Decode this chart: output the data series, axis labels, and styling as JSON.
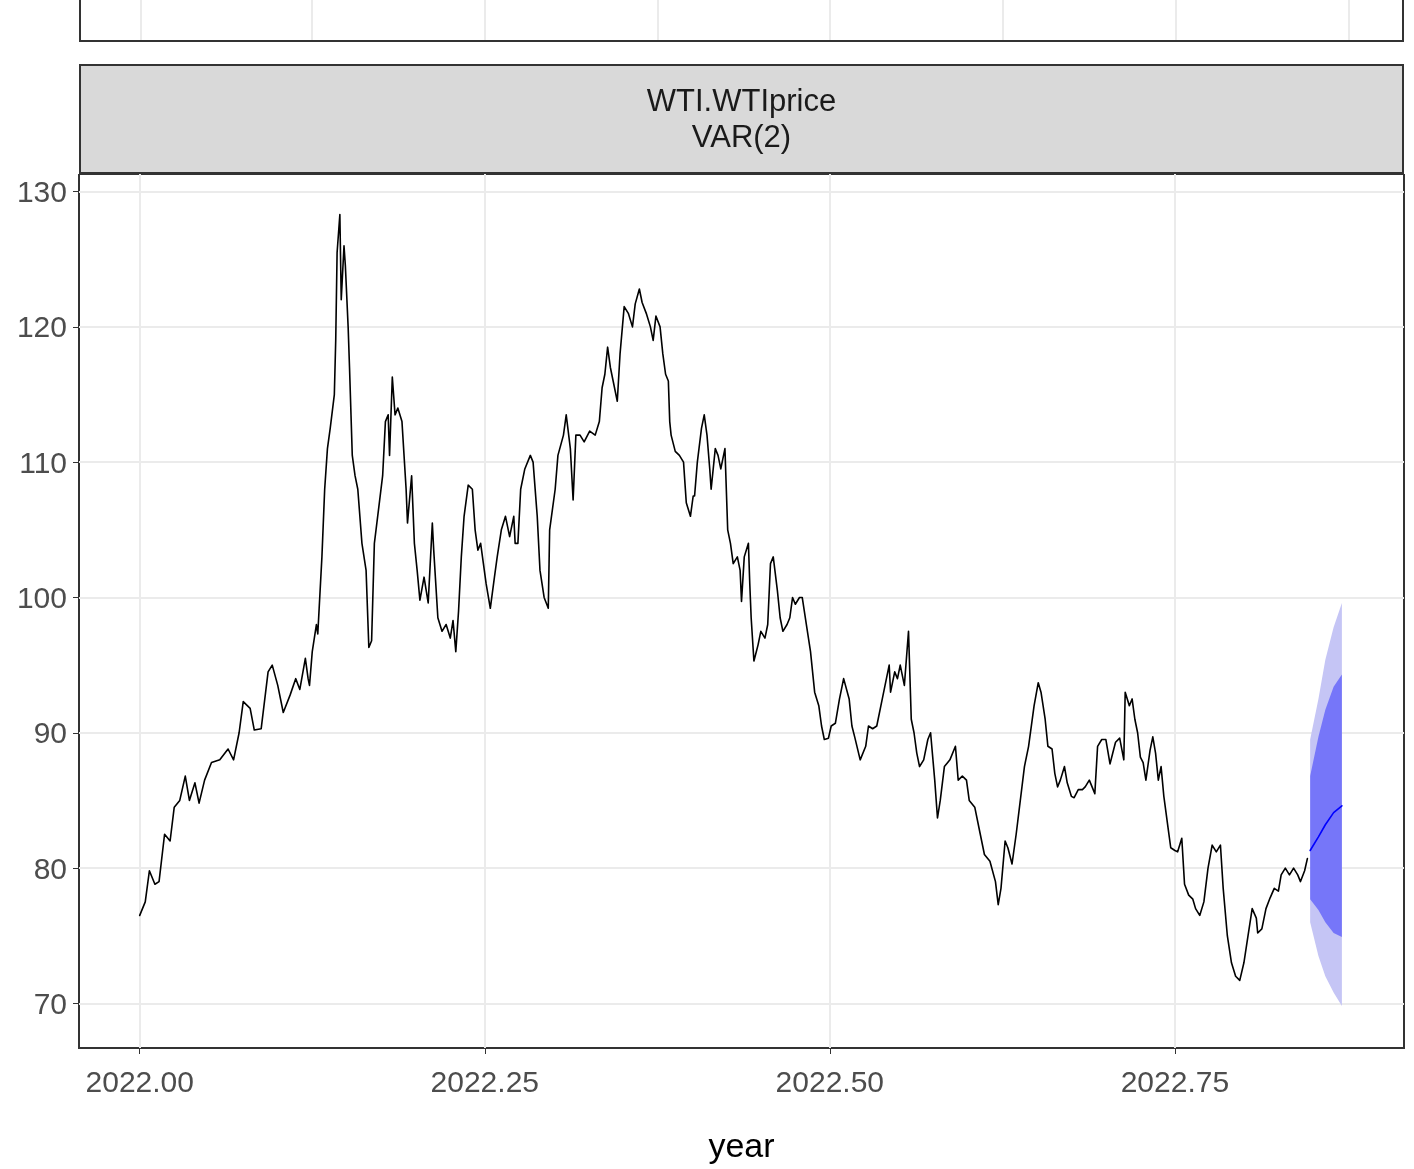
{
  "chart_data": {
    "type": "line",
    "title": "WTI.WTIprice",
    "subtitle": "VAR(2)",
    "xlabel": "year",
    "xlim": [
      2021.956,
      2022.916
    ],
    "xticks": [
      {
        "value": 2022,
        "label": "2022.00"
      },
      {
        "value": 2022.25,
        "label": "2022.25"
      },
      {
        "value": 2022.5,
        "label": "2022.50"
      },
      {
        "value": 2022.75,
        "label": "2022.75"
      }
    ],
    "ylim": [
      66.7,
      131.3
    ],
    "yticks": [
      70,
      80,
      90,
      100,
      110,
      120,
      130
    ],
    "grid": true,
    "series": [
      {
        "color": "#000000",
        "x": [
          2022.0,
          2022.004,
          2022.007,
          2022.011,
          2022.014,
          2022.018,
          2022.022,
          2022.025,
          2022.029,
          2022.033,
          2022.036,
          2022.04,
          2022.043,
          2022.047,
          2022.052,
          2022.058,
          2022.064,
          2022.068,
          2022.072,
          2022.075,
          2022.08,
          2022.083,
          2022.088,
          2022.093,
          2022.096,
          2022.1,
          2022.104,
          2022.109,
          2022.113,
          2022.116,
          2022.12,
          2022.122,
          2022.123,
          2022.125,
          2022.128,
          2022.129,
          2022.132,
          2022.134,
          2022.136,
          2022.138,
          2022.141,
          2022.142,
          2022.143,
          2022.145,
          2022.146,
          2022.148,
          2022.149,
          2022.151,
          2022.152,
          2022.154,
          2022.156,
          2022.158,
          2022.161,
          2022.164,
          2022.166,
          2022.168,
          2022.17,
          2022.173,
          2022.176,
          2022.178,
          2022.18,
          2022.181,
          2022.183,
          2022.185,
          2022.187,
          2022.19,
          2022.193,
          2022.194,
          2022.197,
          2022.199,
          2022.201,
          2022.203,
          2022.206,
          2022.209,
          2022.212,
          2022.213,
          2022.216,
          2022.219,
          2022.222,
          2022.225,
          2022.227,
          2022.229,
          2022.231,
          2022.233,
          2022.235,
          2022.238,
          2022.241,
          2022.243,
          2022.245,
          2022.247,
          2022.249,
          2022.251,
          2022.254,
          2022.257,
          2022.259,
          2022.262,
          2022.265,
          2022.268,
          2022.271,
          2022.272,
          2022.274,
          2022.276,
          2022.279,
          2022.283,
          2022.285,
          2022.288,
          2022.29,
          2022.293,
          2022.296,
          2022.297,
          2022.301,
          2022.303,
          2022.307,
          2022.309,
          2022.312,
          2022.314,
          2022.316,
          2022.319,
          2022.322,
          2022.326,
          2022.33,
          2022.333,
          2022.335,
          2022.337,
          2022.339,
          2022.341,
          2022.343,
          2022.346,
          2022.348,
          2022.351,
          2022.354,
          2022.357,
          2022.359,
          2022.362,
          2022.364,
          2022.367,
          2022.37,
          2022.372,
          2022.374,
          2022.377,
          2022.379,
          2022.381,
          2022.383,
          2022.384,
          2022.385,
          2022.388,
          2022.391,
          2022.394,
          2022.396,
          2022.399,
          2022.401,
          2022.402,
          2022.404,
          2022.407,
          2022.409,
          2022.411,
          2022.413,
          2022.414,
          2022.417,
          2022.419,
          2022.421,
          2022.422,
          2022.424,
          2022.426,
          2022.428,
          2022.43,
          2022.433,
          2022.435,
          2022.436,
          2022.438,
          2022.441,
          2022.442,
          2022.443,
          2022.445,
          2022.448,
          2022.45,
          2022.453,
          2022.455,
          2022.457,
          2022.459,
          2022.462,
          2022.464,
          2022.466,
          2022.469,
          2022.471,
          2022.473,
          2022.475,
          2022.478,
          2022.48,
          2022.483,
          2022.486,
          2022.489,
          2022.492,
          2022.494,
          2022.496,
          2022.499,
          2022.501,
          2022.504,
          2022.507,
          2022.51,
          2022.514,
          2022.516,
          2022.518,
          2022.522,
          2022.526,
          2022.528,
          2022.531,
          2022.534,
          2022.538,
          2022.541,
          2022.543,
          2022.544,
          2022.547,
          2022.549,
          2022.551,
          2022.554,
          2022.557,
          2022.559,
          2022.561,
          2022.563,
          2022.565,
          2022.568,
          2022.571,
          2022.573,
          2022.576,
          2022.578,
          2022.58,
          2022.583,
          2022.587,
          2022.591,
          2022.593,
          2022.596,
          2022.599,
          2022.601,
          2022.605,
          2022.609,
          2022.612,
          2022.616,
          2022.62,
          2022.622,
          2022.624,
          2022.627,
          2022.629,
          2022.632,
          2022.635,
          2022.638,
          2022.641,
          2022.644,
          2022.648,
          2022.651,
          2022.653,
          2022.656,
          2022.658,
          2022.661,
          2022.663,
          2022.665,
          2022.667,
          2022.67,
          2022.672,
          2022.675,
          2022.677,
          2022.68,
          2022.683,
          2022.685,
          2022.688,
          2022.692,
          2022.694,
          2022.697,
          2022.7,
          2022.703,
          2022.705,
          2022.707,
          2022.71,
          2022.713,
          2022.714,
          2022.717,
          2022.719,
          2022.721,
          2022.723,
          2022.725,
          2022.727,
          2022.729,
          2022.732,
          2022.734,
          2022.736,
          2022.738,
          2022.74,
          2022.742,
          2022.745,
          2022.747,
          2022.75,
          2022.752,
          2022.755,
          2022.757,
          2022.76,
          2022.763,
          2022.765,
          2022.768,
          2022.771,
          2022.774,
          2022.777,
          2022.78,
          2022.783,
          2022.785,
          2022.788,
          2022.791,
          2022.794,
          2022.797,
          2022.8,
          2022.803,
          2022.806,
          2022.809,
          2022.81,
          2022.813,
          2022.816,
          2022.819,
          2022.822,
          2022.825,
          2022.827,
          2022.83,
          2022.833,
          2022.836,
          2022.839,
          2022.841,
          2022.844,
          2022.846
        ],
        "values": [
          76.5,
          77.5,
          79.8,
          78.8,
          79,
          82.5,
          82,
          84.5,
          85,
          86.8,
          85,
          86.3,
          84.8,
          86.5,
          87.8,
          88,
          88.8,
          88,
          90,
          92.3,
          91.8,
          90.2,
          90.3,
          94.5,
          95,
          93.5,
          91.5,
          92.8,
          94,
          93.2,
          95.5,
          94,
          93.5,
          96,
          98,
          97.3,
          103,
          108,
          111,
          112.5,
          115,
          119,
          125.5,
          128.3,
          122,
          126,
          124.5,
          120,
          117,
          110.5,
          109,
          108,
          104,
          102,
          96.3,
          96.8,
          104,
          106.5,
          109,
          113,
          113.5,
          110.5,
          116.3,
          113.5,
          114,
          113,
          108,
          105.5,
          109,
          104,
          102,
          99.8,
          101.5,
          99.6,
          105.5,
          103.5,
          98.5,
          97.5,
          98,
          97,
          98.3,
          96,
          99,
          103,
          106,
          108.3,
          108,
          105,
          103.5,
          104,
          102.5,
          101,
          99.2,
          101.5,
          103,
          105,
          106,
          104.5,
          106,
          104,
          104,
          108,
          109.5,
          110.5,
          110,
          106,
          102,
          100,
          99.2,
          105,
          108,
          110.5,
          112,
          113.5,
          111,
          107.2,
          112,
          112,
          111.5,
          112.3,
          112,
          113,
          115.5,
          116.5,
          118.5,
          117,
          116,
          114.5,
          118,
          121.5,
          121,
          120,
          121.7,
          122.8,
          121.8,
          121,
          120,
          119,
          120.8,
          120,
          118,
          116.5,
          116,
          113,
          112,
          110.8,
          110.5,
          110,
          107,
          106,
          107.5,
          107.5,
          110,
          112.5,
          113.5,
          112,
          109.5,
          108,
          111,
          110.5,
          109.5,
          110,
          111,
          105,
          104,
          102.5,
          103,
          102,
          99.7,
          103,
          104,
          101,
          98.5,
          95.3,
          96.5,
          97.5,
          97,
          98,
          102.5,
          103,
          100.5,
          98.5,
          97.5,
          98,
          98.5,
          100,
          99.5,
          100,
          100,
          98,
          96,
          93,
          92,
          90.5,
          89.5,
          89.6,
          90.5,
          90.7,
          92.5,
          94,
          92.5,
          90.5,
          89.7,
          88,
          89,
          90.5,
          90.3,
          90.5,
          92.5,
          94,
          95,
          93,
          94.5,
          94,
          95,
          93.5,
          97.5,
          91,
          90,
          88.5,
          87.5,
          88,
          89.5,
          90,
          86.5,
          83.7,
          85,
          87.5,
          88,
          89,
          86.5,
          86.8,
          86.5,
          85,
          84.5,
          82.5,
          81,
          80.5,
          79,
          77.3,
          78.5,
          82,
          81.5,
          80.3,
          82.5,
          85,
          87.5,
          89,
          92,
          93.7,
          93,
          91,
          89,
          88.8,
          87,
          86,
          86.5,
          87.5,
          86.3,
          85.3,
          85.2,
          85.8,
          85.8,
          86,
          86.5,
          85.5,
          89,
          89.5,
          89.5,
          87.7,
          88.5,
          89.3,
          89.6,
          88,
          93,
          92,
          92.5,
          91,
          90,
          88.2,
          87.8,
          86.5,
          88.7,
          89.7,
          88.5,
          86.5,
          87.5,
          85.3,
          83,
          81.5,
          81.3,
          81.2,
          82.2,
          78.8,
          78,
          77.7,
          77,
          76.5,
          77.5,
          80,
          81.7,
          81.2,
          81.7,
          78.5,
          75,
          73,
          72,
          71.7,
          73,
          75,
          77,
          76.3,
          75.2,
          75.5,
          77,
          77.8,
          78.5,
          78.3,
          79.5,
          80,
          79.5,
          80,
          79.5,
          79,
          79.8,
          80.7
        ]
      },
      {
        "color": "#c5c5f5",
        "x": [
          2022.848,
          2022.854,
          2022.859,
          2022.865,
          2022.871
        ],
        "values": [
          null,
          null,
          null,
          null,
          null
        ],
        "lower": [
          76.0,
          73.5,
          72.0,
          70.8,
          69.8
        ],
        "upper": [
          89.5,
          92.5,
          95.4,
          97.8,
          99.6
        ]
      },
      {
        "color": "#0000ff",
        "x": [
          2022.848,
          2022.854,
          2022.859,
          2022.865,
          2022.871
        ],
        "values": [
          81.3,
          82.3,
          83.2,
          84.1,
          84.6
        ],
        "lower": [
          77.7,
          76.9,
          76.0,
          75.2,
          74.9
        ],
        "upper": [
          86.8,
          89.7,
          91.7,
          93.4,
          94.3
        ]
      }
    ]
  }
}
